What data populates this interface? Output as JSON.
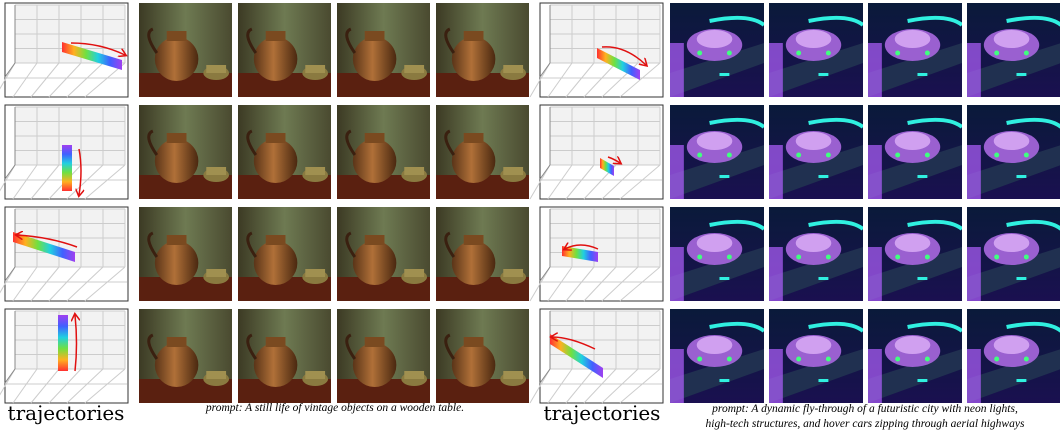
{
  "panels": [
    {
      "label": "trajectories",
      "prompt_lines": [
        "prompt: A still life of vintage objects on a wooden table."
      ]
    },
    {
      "label": "trajectories",
      "prompt_lines": [
        "prompt: A dynamic fly-through of a futuristic city with neon lights,",
        "high-tech structures, and hover cars zipping through aerial highways"
      ]
    }
  ]
}
